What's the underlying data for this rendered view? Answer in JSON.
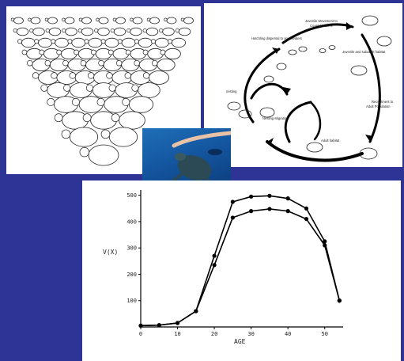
{
  "cycle": {
    "stages": [
      "Juvenile Movement to Coastal Waters",
      "Hatchling dispersal to open waters",
      "Juvenile and subadult habitat",
      "nesting",
      "Nesting Migration",
      "Recruitment to Adult Population",
      "Adult habitat"
    ]
  },
  "chart_data": {
    "type": "line",
    "title": "",
    "xlabel": "AGE",
    "ylabel": "V(X)",
    "xlim": [
      0,
      55
    ],
    "ylim": [
      0,
      520
    ],
    "xticks": [
      0,
      10,
      20,
      30,
      40,
      50
    ],
    "yticks": [
      100,
      200,
      300,
      400,
      500
    ],
    "grid": false,
    "legend": "none",
    "series": [
      {
        "x": [
          0,
          5,
          10,
          15,
          20,
          25,
          30,
          35,
          40,
          45,
          50,
          54
        ],
        "values": [
          5,
          7,
          15,
          60,
          270,
          475,
          495,
          498,
          488,
          450,
          325,
          100
        ]
      },
      {
        "x": [
          0,
          5,
          10,
          15,
          20,
          25,
          30,
          35,
          40,
          45,
          50,
          54
        ],
        "values": [
          5,
          7,
          15,
          60,
          235,
          415,
          440,
          448,
          440,
          410,
          310,
          100
        ]
      }
    ]
  }
}
